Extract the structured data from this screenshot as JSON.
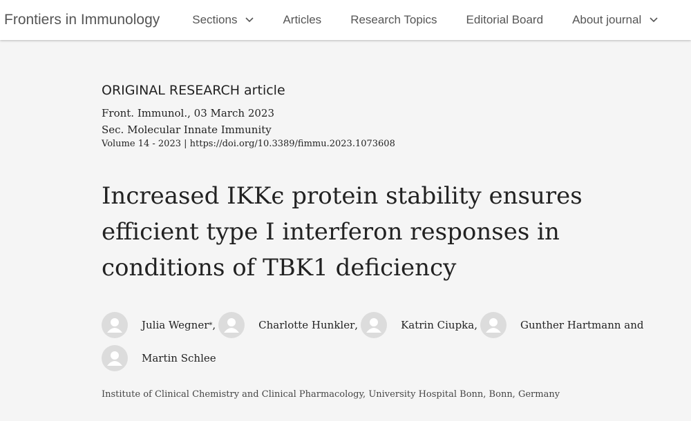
{
  "header": {
    "brand": "Frontiers in Immunology",
    "nav": [
      {
        "label": "Sections",
        "dropdown": true
      },
      {
        "label": "Articles"
      },
      {
        "label": "Research Topics"
      },
      {
        "label": "Editorial Board"
      },
      {
        "label": "About journal",
        "dropdown": true
      }
    ]
  },
  "article": {
    "type": "ORIGINAL RESEARCH article",
    "journal_line": "Front. Immunol., 03 March 2023",
    "section": "Sec. Molecular Innate Immunity",
    "volume_line": "Volume 14 - 2023 | https://doi.org/10.3389/fimmu.2023.1073608",
    "title": "Increased IKKϵ protein stability ensures efficient type I interferon responses in conditions of TBK1 deficiency",
    "authors": [
      {
        "name": "Julia Wegner",
        "marker": "*",
        "suffix": ","
      },
      {
        "name": "Charlotte Hunkler",
        "suffix": ","
      },
      {
        "name": "Katrin Ciupka",
        "suffix": ","
      },
      {
        "name": "Gunther Hartmann",
        "suffix": " and"
      },
      {
        "name": "Martin Schlee"
      }
    ],
    "affiliation": "Institute of Clinical Chemistry and Clinical Pharmacology, University Hospital Bonn, Bonn, Germany"
  }
}
